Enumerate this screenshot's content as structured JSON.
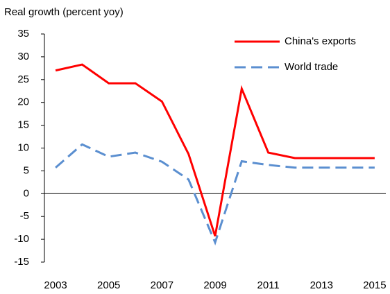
{
  "chart_data": {
    "type": "line",
    "y_label": "Real growth (percent yoy)",
    "x": [
      2003,
      2004,
      2005,
      2006,
      2007,
      2008,
      2009,
      2010,
      2011,
      2012,
      2013,
      2014,
      2015
    ],
    "series": [
      {
        "name": "China's exports",
        "color": "#ff0000",
        "dash": "solid",
        "values": [
          27,
          28.3,
          24.2,
          24.2,
          20.2,
          8.7,
          -9.3,
          23,
          9,
          7.8,
          7.8,
          7.8,
          7.8
        ]
      },
      {
        "name": "World trade",
        "color": "#5b8fd0",
        "dash": "dashed",
        "values": [
          5.7,
          10.8,
          8.1,
          9,
          7,
          3.1,
          -10.7,
          7.1,
          6.3,
          5.7,
          5.7,
          5.7,
          5.7
        ]
      }
    ],
    "xlim": [
      2002.58,
      2015.42
    ],
    "xticks": [
      2003,
      2005,
      2007,
      2009,
      2011,
      2013,
      2015
    ],
    "ylim": [
      -15,
      35
    ],
    "yticks": [
      -15,
      -10,
      -5,
      0,
      5,
      10,
      15,
      20,
      25,
      30,
      35
    ],
    "legend": "top-right"
  }
}
